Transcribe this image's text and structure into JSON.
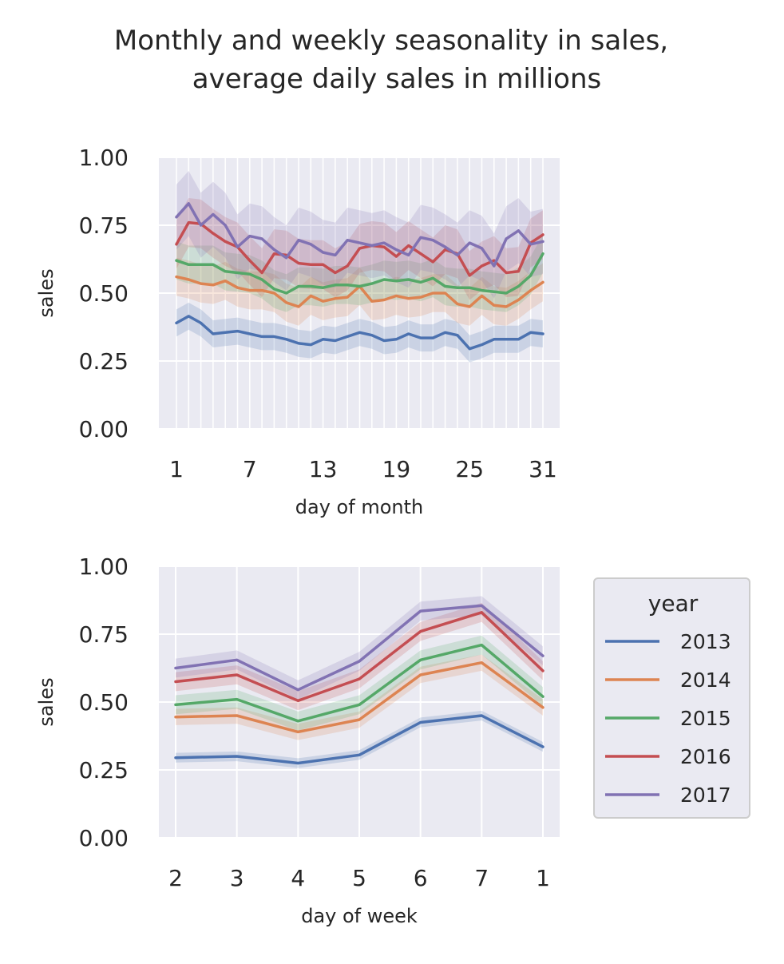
{
  "figure": {
    "title_line1": "Monthly and weekly seasonality in sales,",
    "title_line2": "average daily sales in millions"
  },
  "legend": {
    "title": "year",
    "placement": "right"
  },
  "colors": {
    "2013": "#4c72b0",
    "2014": "#dd8452",
    "2015": "#55a868",
    "2016": "#c44e52",
    "2017": "#8172b3",
    "axes_bg": "#eaeaf2",
    "grid": "#ffffff"
  },
  "chart_data": [
    {
      "type": "line",
      "xlabel": "day of month",
      "ylabel": "sales",
      "ylim": [
        0,
        1
      ],
      "yticks": [
        "0.00",
        "0.25",
        "0.50",
        "0.75",
        "1.00"
      ],
      "xticks": [
        "1",
        "7",
        "13",
        "19",
        "25",
        "31"
      ],
      "x": [
        1,
        2,
        3,
        4,
        5,
        6,
        7,
        8,
        9,
        10,
        11,
        12,
        13,
        14,
        15,
        16,
        17,
        18,
        19,
        20,
        21,
        22,
        23,
        24,
        25,
        26,
        27,
        28,
        29,
        30,
        31
      ],
      "grid": true,
      "series": [
        {
          "name": "2013",
          "band": 0.05,
          "values": [
            0.39,
            0.415,
            0.39,
            0.35,
            0.355,
            0.36,
            0.35,
            0.34,
            0.34,
            0.33,
            0.315,
            0.31,
            0.33,
            0.325,
            0.34,
            0.355,
            0.345,
            0.325,
            0.33,
            0.35,
            0.335,
            0.335,
            0.355,
            0.345,
            0.295,
            0.31,
            0.33,
            0.33,
            0.33,
            0.355,
            0.35
          ]
        },
        {
          "name": "2014",
          "band": 0.07,
          "values": [
            0.56,
            0.55,
            0.535,
            0.53,
            0.545,
            0.52,
            0.51,
            0.51,
            0.5,
            0.465,
            0.45,
            0.49,
            0.47,
            0.48,
            0.485,
            0.525,
            0.47,
            0.475,
            0.49,
            0.48,
            0.485,
            0.5,
            0.5,
            0.46,
            0.45,
            0.49,
            0.455,
            0.45,
            0.475,
            0.51,
            0.54
          ]
        },
        {
          "name": "2015",
          "band": 0.07,
          "values": [
            0.62,
            0.605,
            0.605,
            0.605,
            0.58,
            0.575,
            0.57,
            0.55,
            0.515,
            0.5,
            0.525,
            0.525,
            0.52,
            0.53,
            0.53,
            0.525,
            0.535,
            0.55,
            0.545,
            0.55,
            0.54,
            0.555,
            0.525,
            0.52,
            0.52,
            0.51,
            0.505,
            0.5,
            0.525,
            0.565,
            0.645
          ]
        },
        {
          "name": "2016",
          "band": 0.09,
          "values": [
            0.68,
            0.76,
            0.755,
            0.72,
            0.69,
            0.67,
            0.62,
            0.575,
            0.645,
            0.64,
            0.61,
            0.605,
            0.605,
            0.575,
            0.6,
            0.665,
            0.675,
            0.67,
            0.635,
            0.675,
            0.645,
            0.615,
            0.66,
            0.645,
            0.565,
            0.6,
            0.62,
            0.575,
            0.58,
            0.685,
            0.715
          ]
        },
        {
          "name": "2017",
          "band": 0.12,
          "values": [
            0.78,
            0.83,
            0.75,
            0.79,
            0.75,
            0.67,
            0.71,
            0.7,
            0.66,
            0.63,
            0.695,
            0.68,
            0.65,
            0.64,
            0.695,
            0.685,
            0.675,
            0.685,
            0.66,
            0.64,
            0.705,
            0.695,
            0.67,
            0.64,
            0.685,
            0.665,
            0.6,
            0.7,
            0.73,
            0.68,
            0.69
          ]
        }
      ]
    },
    {
      "type": "line",
      "xlabel": "day of week",
      "ylabel": "sales",
      "ylim": [
        0,
        1
      ],
      "yticks": [
        "0.00",
        "0.25",
        "0.50",
        "0.75",
        "1.00"
      ],
      "categories": [
        "2",
        "3",
        "4",
        "5",
        "6",
        "7",
        "1"
      ],
      "grid": true,
      "series": [
        {
          "name": "2013",
          "band": 0.018,
          "values": [
            0.295,
            0.3,
            0.275,
            0.305,
            0.425,
            0.45,
            0.335
          ]
        },
        {
          "name": "2014",
          "band": 0.03,
          "values": [
            0.445,
            0.45,
            0.39,
            0.435,
            0.6,
            0.645,
            0.48
          ]
        },
        {
          "name": "2015",
          "band": 0.035,
          "values": [
            0.49,
            0.51,
            0.43,
            0.49,
            0.655,
            0.71,
            0.52
          ]
        },
        {
          "name": "2016",
          "band": 0.035,
          "values": [
            0.575,
            0.6,
            0.505,
            0.585,
            0.76,
            0.83,
            0.615
          ]
        },
        {
          "name": "2017",
          "band": 0.035,
          "values": [
            0.625,
            0.655,
            0.545,
            0.65,
            0.835,
            0.855,
            0.67
          ]
        }
      ]
    }
  ]
}
